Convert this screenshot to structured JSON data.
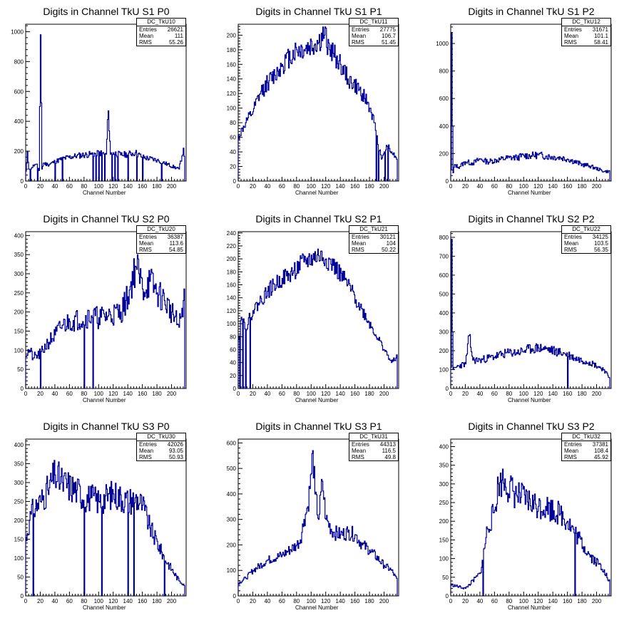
{
  "chart_data": [
    {
      "type": "histogram",
      "title": "Digits in Channel TkU S1 P0",
      "xlabel": "Channel Number",
      "ylabel": "",
      "xlim": [
        0,
        220
      ],
      "ylim": [
        0,
        1050
      ],
      "xticks": [
        0,
        20,
        40,
        60,
        80,
        100,
        120,
        140,
        160,
        180,
        200
      ],
      "yticks": [
        0,
        200,
        400,
        600,
        800,
        1000
      ],
      "stats": {
        "name": "DC_TkU10",
        "entries_label": "Entries",
        "entries": "26621",
        "mean_label": "Mean",
        "mean": "111",
        "rms_label": "RMS",
        "rms": "55.26"
      },
      "profile": [
        [
          0,
          60
        ],
        [
          2,
          200
        ],
        [
          4,
          80
        ],
        [
          8,
          90
        ],
        [
          12,
          110
        ],
        [
          16,
          100
        ],
        [
          18,
          70
        ],
        [
          20,
          980
        ],
        [
          22,
          80
        ],
        [
          24,
          120
        ],
        [
          30,
          110
        ],
        [
          40,
          130
        ],
        [
          50,
          150
        ],
        [
          60,
          160
        ],
        [
          70,
          170
        ],
        [
          80,
          175
        ],
        [
          90,
          180
        ],
        [
          100,
          190
        ],
        [
          110,
          180
        ],
        [
          113,
          470
        ],
        [
          116,
          180
        ],
        [
          120,
          190
        ],
        [
          130,
          175
        ],
        [
          140,
          180
        ],
        [
          150,
          190
        ],
        [
          160,
          160
        ],
        [
          170,
          150
        ],
        [
          180,
          140
        ],
        [
          190,
          120
        ],
        [
          200,
          100
        ],
        [
          210,
          80
        ],
        [
          216,
          220
        ],
        [
          218,
          80
        ]
      ],
      "dips": [
        6,
        16,
        40,
        50,
        92,
        96,
        100,
        104,
        108,
        118,
        122,
        126,
        140,
        152,
        160,
        186
      ],
      "seed": 11,
      "noise": 0.12
    },
    {
      "type": "histogram",
      "title": "Digits in Channel TkU S1 P1",
      "xlabel": "Channel Number",
      "ylabel": "",
      "xlim": [
        0,
        220
      ],
      "ylim": [
        0,
        215
      ],
      "xticks": [
        0,
        20,
        40,
        60,
        80,
        100,
        120,
        140,
        160,
        180,
        200
      ],
      "yticks": [
        0,
        20,
        40,
        60,
        80,
        100,
        120,
        140,
        160,
        180,
        200
      ],
      "stats": {
        "name": "DC_TkU11",
        "entries_label": "Entries",
        "entries": "27775",
        "mean_label": "Mean",
        "mean": "106.7",
        "rms_label": "RMS",
        "rms": "51.45"
      },
      "profile": [
        [
          0,
          60
        ],
        [
          10,
          80
        ],
        [
          20,
          95
        ],
        [
          30,
          120
        ],
        [
          40,
          135
        ],
        [
          50,
          145
        ],
        [
          60,
          160
        ],
        [
          70,
          170
        ],
        [
          80,
          180
        ],
        [
          90,
          180
        ],
        [
          100,
          185
        ],
        [
          110,
          190
        ],
        [
          118,
          200
        ],
        [
          125,
          180
        ],
        [
          130,
          175
        ],
        [
          140,
          160
        ],
        [
          150,
          140
        ],
        [
          160,
          130
        ],
        [
          170,
          120
        ],
        [
          180,
          100
        ],
        [
          186,
          80
        ],
        [
          190,
          60
        ],
        [
          196,
          30
        ],
        [
          200,
          40
        ],
        [
          205,
          50
        ],
        [
          210,
          40
        ],
        [
          218,
          30
        ]
      ],
      "dips": [
        189,
        192,
        201,
        205
      ],
      "seed": 12,
      "noise": 0.09
    },
    {
      "type": "histogram",
      "title": "Digits in Channel TkU S1 P2",
      "xlabel": "Channel Number",
      "ylabel": "",
      "xlim": [
        0,
        220
      ],
      "ylim": [
        0,
        1140
      ],
      "xticks": [
        0,
        20,
        40,
        60,
        80,
        100,
        120,
        140,
        160,
        180,
        200
      ],
      "yticks": [
        0,
        200,
        400,
        600,
        800,
        1000
      ],
      "stats": {
        "name": "DC_TkU12",
        "entries_label": "Entries",
        "entries": "31671",
        "mean_label": "Mean",
        "mean": "101.1",
        "rms_label": "RMS",
        "rms": "58.41"
      },
      "profile": [
        [
          0,
          80
        ],
        [
          1,
          1080
        ],
        [
          2,
          400
        ],
        [
          3,
          60
        ],
        [
          5,
          120
        ],
        [
          10,
          100
        ],
        [
          20,
          140
        ],
        [
          30,
          130
        ],
        [
          40,
          160
        ],
        [
          50,
          140
        ],
        [
          60,
          150
        ],
        [
          70,
          160
        ],
        [
          80,
          170
        ],
        [
          90,
          170
        ],
        [
          100,
          185
        ],
        [
          110,
          185
        ],
        [
          120,
          190
        ],
        [
          130,
          180
        ],
        [
          140,
          175
        ],
        [
          150,
          170
        ],
        [
          160,
          160
        ],
        [
          170,
          140
        ],
        [
          180,
          120
        ],
        [
          190,
          110
        ],
        [
          200,
          90
        ],
        [
          210,
          70
        ]
      ],
      "dips": [],
      "seed": 13,
      "noise": 0.14
    },
    {
      "type": "histogram",
      "title": "Digits in Channel TkU S2 P0",
      "xlabel": "Channel Number",
      "ylabel": "",
      "xlim": [
        0,
        220
      ],
      "ylim": [
        0,
        410
      ],
      "xticks": [
        0,
        20,
        40,
        60,
        80,
        100,
        120,
        140,
        160,
        180,
        200
      ],
      "yticks": [
        0,
        50,
        100,
        150,
        200,
        250,
        300,
        350,
        400
      ],
      "stats": {
        "name": "DC_TkU20",
        "entries_label": "Entries",
        "entries": "36387",
        "mean_label": "Mean",
        "mean": "113.6",
        "rms_label": "RMS",
        "rms": "54.85"
      },
      "profile": [
        [
          0,
          90
        ],
        [
          5,
          100
        ],
        [
          10,
          80
        ],
        [
          20,
          90
        ],
        [
          30,
          120
        ],
        [
          40,
          140
        ],
        [
          50,
          165
        ],
        [
          60,
          175
        ],
        [
          70,
          180
        ],
        [
          80,
          185
        ],
        [
          90,
          190
        ],
        [
          100,
          185
        ],
        [
          110,
          190
        ],
        [
          120,
          195
        ],
        [
          130,
          200
        ],
        [
          140,
          240
        ],
        [
          150,
          320
        ],
        [
          155,
          300
        ],
        [
          160,
          260
        ],
        [
          170,
          280
        ],
        [
          180,
          250
        ],
        [
          190,
          230
        ],
        [
          200,
          200
        ],
        [
          210,
          160
        ],
        [
          216,
          230
        ]
      ],
      "dips": [
        20,
        80,
        92
      ],
      "seed": 21,
      "noise": 0.16
    },
    {
      "type": "histogram",
      "title": "Digits in Channel TkU S2 P1",
      "xlabel": "Channel Number",
      "ylabel": "",
      "xlim": [
        0,
        220
      ],
      "ylim": [
        0,
        242
      ],
      "xticks": [
        0,
        20,
        40,
        60,
        80,
        100,
        120,
        140,
        160,
        180,
        200
      ],
      "yticks": [
        0,
        20,
        40,
        60,
        80,
        100,
        120,
        140,
        160,
        180,
        200,
        220,
        240
      ],
      "stats": {
        "name": "DC_TkU21",
        "entries_label": "Entries",
        "entries": "30121",
        "mean_label": "Mean",
        "mean": "104",
        "rms_label": "RMS",
        "rms": "50.22"
      },
      "profile": [
        [
          0,
          80
        ],
        [
          4,
          110
        ],
        [
          10,
          95
        ],
        [
          20,
          120
        ],
        [
          30,
          135
        ],
        [
          40,
          150
        ],
        [
          50,
          160
        ],
        [
          60,
          170
        ],
        [
          70,
          175
        ],
        [
          80,
          185
        ],
        [
          90,
          195
        ],
        [
          100,
          200
        ],
        [
          110,
          205
        ],
        [
          120,
          200
        ],
        [
          130,
          190
        ],
        [
          140,
          175
        ],
        [
          150,
          160
        ],
        [
          160,
          140
        ],
        [
          170,
          120
        ],
        [
          180,
          100
        ],
        [
          190,
          80
        ],
        [
          200,
          60
        ],
        [
          210,
          40
        ],
        [
          218,
          50
        ]
      ],
      "dips": [
        2,
        6,
        10,
        16
      ],
      "seed": 22,
      "noise": 0.08
    },
    {
      "type": "histogram",
      "title": "Digits in Channel TkU S2 P2",
      "xlabel": "Channel Number",
      "ylabel": "",
      "xlim": [
        0,
        220
      ],
      "ylim": [
        0,
        830
      ],
      "xticks": [
        0,
        20,
        40,
        60,
        80,
        100,
        120,
        140,
        160,
        180,
        200
      ],
      "yticks": [
        0,
        100,
        200,
        300,
        400,
        500,
        600,
        700,
        800
      ],
      "stats": {
        "name": "DC_TkU22",
        "entries_label": "Entries",
        "entries": "34125",
        "mean_label": "Mean",
        "mean": "103.5",
        "rms_label": "RMS",
        "rms": "56.35"
      },
      "profile": [
        [
          0,
          100
        ],
        [
          1,
          790
        ],
        [
          2,
          300
        ],
        [
          3,
          100
        ],
        [
          10,
          120
        ],
        [
          20,
          130
        ],
        [
          25,
          280
        ],
        [
          30,
          150
        ],
        [
          40,
          150
        ],
        [
          50,
          160
        ],
        [
          60,
          170
        ],
        [
          70,
          180
        ],
        [
          80,
          190
        ],
        [
          90,
          190
        ],
        [
          100,
          200
        ],
        [
          110,
          210
        ],
        [
          120,
          215
        ],
        [
          130,
          210
        ],
        [
          140,
          200
        ],
        [
          150,
          190
        ],
        [
          160,
          180
        ],
        [
          170,
          160
        ],
        [
          180,
          150
        ],
        [
          190,
          140
        ],
        [
          200,
          120
        ],
        [
          210,
          100
        ],
        [
          216,
          60
        ]
      ],
      "dips": [
        160
      ],
      "seed": 23,
      "noise": 0.13
    },
    {
      "type": "histogram",
      "title": "Digits in Channel TkU S3 P0",
      "xlabel": "Channel Number",
      "ylabel": "",
      "xlim": [
        0,
        220
      ],
      "ylim": [
        0,
        415
      ],
      "xticks": [
        0,
        20,
        40,
        60,
        80,
        100,
        120,
        140,
        160,
        180,
        200
      ],
      "yticks": [
        0,
        50,
        100,
        150,
        200,
        250,
        300,
        350,
        400
      ],
      "stats": {
        "name": "DC_TkU30",
        "entries_label": "Entries",
        "entries": "42026",
        "mean_label": "Mean",
        "mean": "93.05",
        "rms_label": "RMS",
        "rms": "50.93"
      },
      "profile": [
        [
          0,
          150
        ],
        [
          5,
          200
        ],
        [
          10,
          230
        ],
        [
          20,
          250
        ],
        [
          30,
          280
        ],
        [
          40,
          320
        ],
        [
          50,
          300
        ],
        [
          60,
          290
        ],
        [
          70,
          280
        ],
        [
          80,
          260
        ],
        [
          90,
          260
        ],
        [
          100,
          250
        ],
        [
          110,
          260
        ],
        [
          120,
          270
        ],
        [
          130,
          260
        ],
        [
          140,
          250
        ],
        [
          150,
          260
        ],
        [
          160,
          240
        ],
        [
          170,
          180
        ],
        [
          180,
          140
        ],
        [
          190,
          100
        ],
        [
          200,
          70
        ],
        [
          210,
          40
        ],
        [
          218,
          30
        ]
      ],
      "dips": [
        10,
        80,
        104,
        140,
        148,
        190
      ],
      "seed": 31,
      "noise": 0.15
    },
    {
      "type": "histogram",
      "title": "Digits in Channel TkU S3 P1",
      "xlabel": "Channel Number",
      "ylabel": "",
      "xlim": [
        0,
        220
      ],
      "ylim": [
        0,
        615
      ],
      "xticks": [
        0,
        20,
        40,
        60,
        80,
        100,
        120,
        140,
        160,
        180,
        200
      ],
      "yticks": [
        0,
        100,
        200,
        300,
        400,
        500,
        600
      ],
      "stats": {
        "name": "DC_TkU31",
        "entries_label": "Entries",
        "entries": "44313",
        "mean_label": "Mean",
        "mean": "116.5",
        "rms_label": "RMS",
        "rms": "49.8"
      },
      "profile": [
        [
          0,
          50
        ],
        [
          10,
          70
        ],
        [
          20,
          100
        ],
        [
          30,
          120
        ],
        [
          40,
          140
        ],
        [
          50,
          150
        ],
        [
          60,
          160
        ],
        [
          70,
          180
        ],
        [
          80,
          200
        ],
        [
          85,
          220
        ],
        [
          90,
          300
        ],
        [
          95,
          350
        ],
        [
          100,
          480
        ],
        [
          102,
          570
        ],
        [
          105,
          400
        ],
        [
          110,
          300
        ],
        [
          115,
          450
        ],
        [
          120,
          300
        ],
        [
          130,
          250
        ],
        [
          140,
          240
        ],
        [
          150,
          250
        ],
        [
          160,
          240
        ],
        [
          170,
          200
        ],
        [
          180,
          180
        ],
        [
          190,
          150
        ],
        [
          200,
          120
        ],
        [
          210,
          100
        ],
        [
          218,
          60
        ]
      ],
      "dips": [],
      "seed": 32,
      "noise": 0.12
    },
    {
      "type": "histogram",
      "title": "Digits in Channel TkU S3 P2",
      "xlabel": "Channel Number",
      "ylabel": "",
      "xlim": [
        0,
        220
      ],
      "ylim": [
        0,
        420
      ],
      "xticks": [
        0,
        20,
        40,
        60,
        80,
        100,
        120,
        140,
        160,
        180,
        200
      ],
      "yticks": [
        0,
        50,
        100,
        150,
        200,
        250,
        300,
        350,
        400
      ],
      "stats": {
        "name": "DC_TkU32",
        "entries_label": "Entries",
        "entries": "37381",
        "mean_label": "Mean",
        "mean": "108.4",
        "rms_label": "RMS",
        "rms": "45.92"
      },
      "profile": [
        [
          0,
          30
        ],
        [
          10,
          25
        ],
        [
          20,
          20
        ],
        [
          30,
          40
        ],
        [
          40,
          60
        ],
        [
          45,
          120
        ],
        [
          50,
          180
        ],
        [
          60,
          230
        ],
        [
          65,
          300
        ],
        [
          70,
          310
        ],
        [
          80,
          290
        ],
        [
          90,
          270
        ],
        [
          100,
          260
        ],
        [
          110,
          250
        ],
        [
          120,
          240
        ],
        [
          130,
          240
        ],
        [
          140,
          230
        ],
        [
          150,
          220
        ],
        [
          160,
          200
        ],
        [
          170,
          170
        ],
        [
          180,
          140
        ],
        [
          190,
          110
        ],
        [
          200,
          90
        ],
        [
          210,
          70
        ],
        [
          216,
          40
        ]
      ],
      "dips": [
        44,
        170
      ],
      "seed": 33,
      "noise": 0.15
    }
  ]
}
